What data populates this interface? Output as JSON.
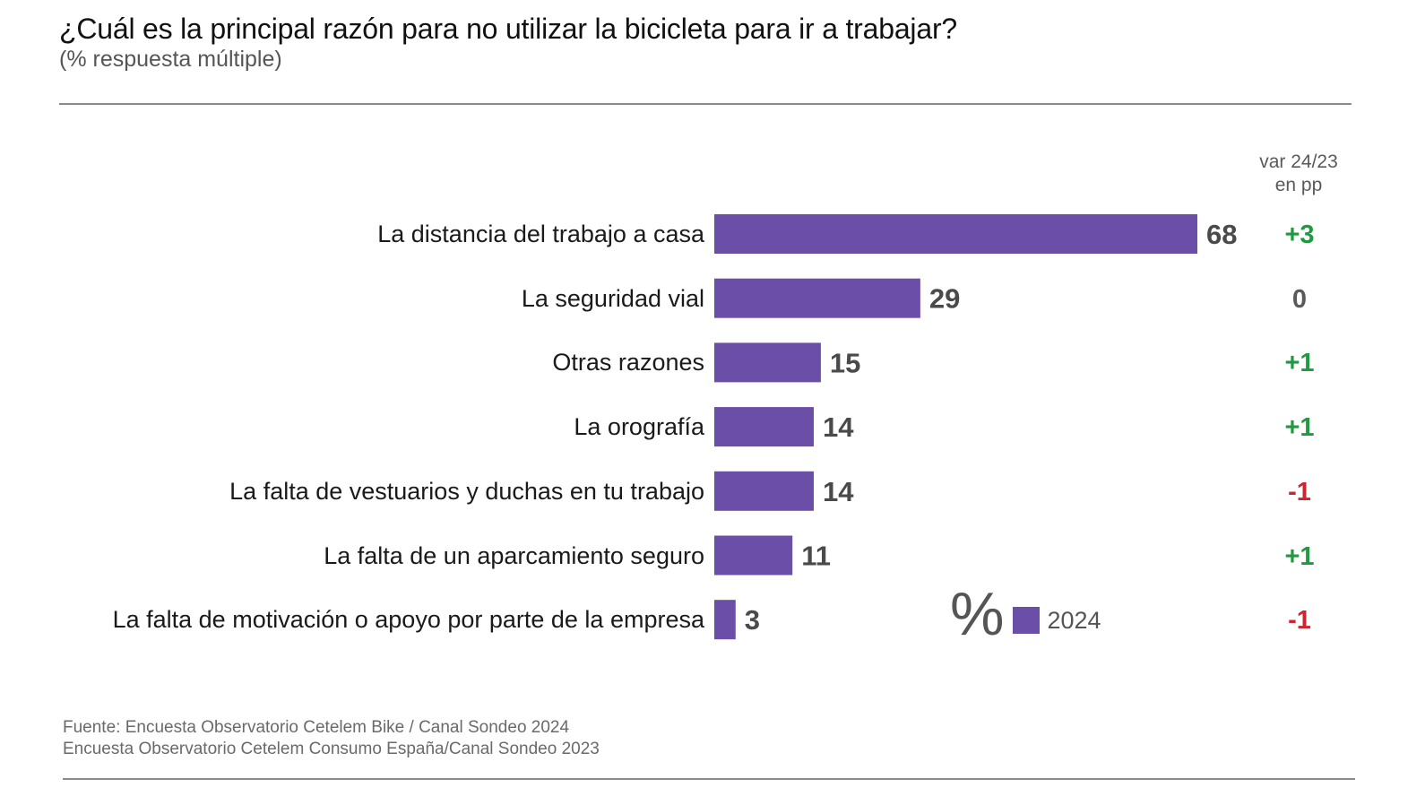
{
  "chart_data": {
    "type": "bar",
    "orientation": "horizontal",
    "title": "¿Cuál es la principal razón para no utilizar la bicicleta para ir a trabajar?",
    "subtitle": "(% respuesta múltiple)",
    "categories": [
      "La distancia del trabajo a casa",
      "La seguridad vial",
      "Otras razones",
      "La orografía",
      "La falta de vestuarios y duchas en tu trabajo",
      "La falta de un aparcamiento seguro",
      "La falta de motivación o apoyo por parte de la empresa"
    ],
    "series": [
      {
        "name": "2024",
        "values": [
          68,
          29,
          15,
          14,
          14,
          11,
          3
        ],
        "color": "#6b4ea8"
      }
    ],
    "variation": {
      "header": [
        "var 24/23",
        "en pp"
      ],
      "values": [
        "+3",
        "0",
        "+1",
        "+1",
        "-1",
        "+1",
        "-1"
      ]
    },
    "legend": {
      "symbol": "%",
      "label": "2024",
      "placement": "bottom-right"
    },
    "colors": {
      "bar": "#6b4ea8",
      "positive": "#1f9a3e",
      "neutral": "#5a5a5a",
      "negative": "#d0242f"
    }
  },
  "source": [
    "Fuente: Encuesta Observatorio Cetelem Bike / Canal Sondeo 2024",
    "Encuesta Observatorio Cetelem Consumo España/Canal Sondeo 2023"
  ]
}
